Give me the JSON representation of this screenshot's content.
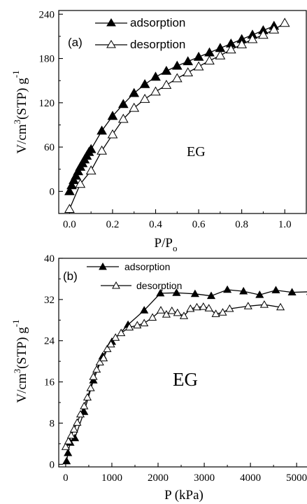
{
  "chart_data": [
    {
      "type": "line",
      "panel_label": "(a)",
      "annotation": "EG",
      "xlabel": "P/P",
      "xlabel_sub": "o",
      "ylabel": "V/cm",
      "ylabel_sup": "3",
      "ylabel_rest": "(STP) g",
      "ylabel_sup2": "-1",
      "xlim": [
        -0.05,
        1.1
      ],
      "ylim": [
        -30,
        245
      ],
      "xticks": [
        0.0,
        0.2,
        0.4,
        0.6,
        0.8,
        1.0
      ],
      "xtick_labels": [
        "0.0",
        "0.2",
        "0.4",
        "0.6",
        "0.8",
        "1.0"
      ],
      "yticks": [
        0,
        60,
        120,
        180,
        240
      ],
      "ytick_labels": [
        "0",
        "60",
        "120",
        "180",
        "240"
      ],
      "legend_position": "top-center",
      "series": [
        {
          "name": "adsorption",
          "marker": "filled-triangle",
          "x": [
            0.0,
            0.01,
            0.02,
            0.03,
            0.04,
            0.05,
            0.06,
            0.07,
            0.08,
            0.09,
            0.1,
            0.15,
            0.2,
            0.25,
            0.3,
            0.35,
            0.4,
            0.45,
            0.5,
            0.55,
            0.6,
            0.65,
            0.7,
            0.75,
            0.8,
            0.85,
            0.9,
            0.95
          ],
          "y": [
            0,
            8,
            15,
            21,
            27,
            33,
            38,
            43,
            48,
            53,
            57,
            82,
            102,
            118,
            133,
            145,
            155,
            163,
            170,
            176,
            182,
            188,
            194,
            200,
            206,
            212,
            218,
            224
          ]
        },
        {
          "name": "desorption",
          "marker": "open-triangle",
          "x": [
            0.0,
            0.05,
            0.1,
            0.15,
            0.2,
            0.25,
            0.3,
            0.35,
            0.4,
            0.45,
            0.5,
            0.55,
            0.6,
            0.65,
            0.7,
            0.75,
            0.8,
            0.85,
            0.9,
            0.95,
            1.0
          ],
          "y": [
            -24,
            10,
            28,
            55,
            77,
            98,
            113,
            125,
            135,
            144,
            153,
            161,
            169,
            177,
            184,
            192,
            199,
            206,
            212,
            219,
            228
          ]
        }
      ]
    },
    {
      "type": "line",
      "panel_label": "(b)",
      "annotation": "EG",
      "xlabel": "P (kPa)",
      "ylabel": "V/cm",
      "ylabel_sup": "3",
      "ylabel_rest": "(STP) g",
      "ylabel_sup2": "-1",
      "xlim": [
        -150,
        5300
      ],
      "ylim": [
        -0.5,
        40
      ],
      "xticks": [
        0,
        1000,
        2000,
        3000,
        4000,
        5000
      ],
      "xtick_labels": [
        "0",
        "1000",
        "2000",
        "3000",
        "4000",
        "5000"
      ],
      "yticks": [
        0,
        8,
        16,
        24,
        32,
        40
      ],
      "ytick_labels": [
        "0",
        "8",
        "16",
        "24",
        "32",
        "40"
      ],
      "legend_position": "top-left",
      "series": [
        {
          "name": "adsorption",
          "marker": "filled-triangle",
          "x": [
            20,
            50,
            100,
            200,
            400,
            600,
            800,
            1000,
            1350,
            1700,
            2050,
            2400,
            2800,
            3150,
            3500,
            3850,
            4200,
            4550,
            4900,
            5300
          ],
          "y": [
            0.6,
            2.2,
            4.2,
            5.1,
            10.2,
            16.3,
            21.0,
            23.8,
            27.1,
            29.9,
            33.2,
            33.3,
            33.1,
            32.7,
            33.9,
            33.6,
            32.9,
            33.8,
            33.4,
            33.5
          ]
        },
        {
          "name": "desorption",
          "marker": "open-triangle",
          "x": [
            0,
            60,
            120,
            180,
            250,
            320,
            400,
            470,
            540,
            600,
            670,
            740,
            820,
            900,
            980,
            1080,
            1200,
            1380,
            1550,
            1700,
            1880,
            2060,
            2180,
            2300,
            2420,
            2560,
            2700,
            2840,
            2980,
            3100,
            3250,
            3400,
            3550,
            3950,
            4300,
            4650
          ],
          "y": [
            3.4,
            4.5,
            5.6,
            6.8,
            8.1,
            9.7,
            11.3,
            13.0,
            14.8,
            17.0,
            18.4,
            19.8,
            20.6,
            22.4,
            23.3,
            24.6,
            25.5,
            26.6,
            27.0,
            27.4,
            28.5,
            29.9,
            29.1,
            29.8,
            29.4,
            28.8,
            30.2,
            30.5,
            30.6,
            30.3,
            29.2,
            29.5,
            30.2,
            30.7,
            31.0,
            30.5
          ]
        }
      ]
    }
  ]
}
